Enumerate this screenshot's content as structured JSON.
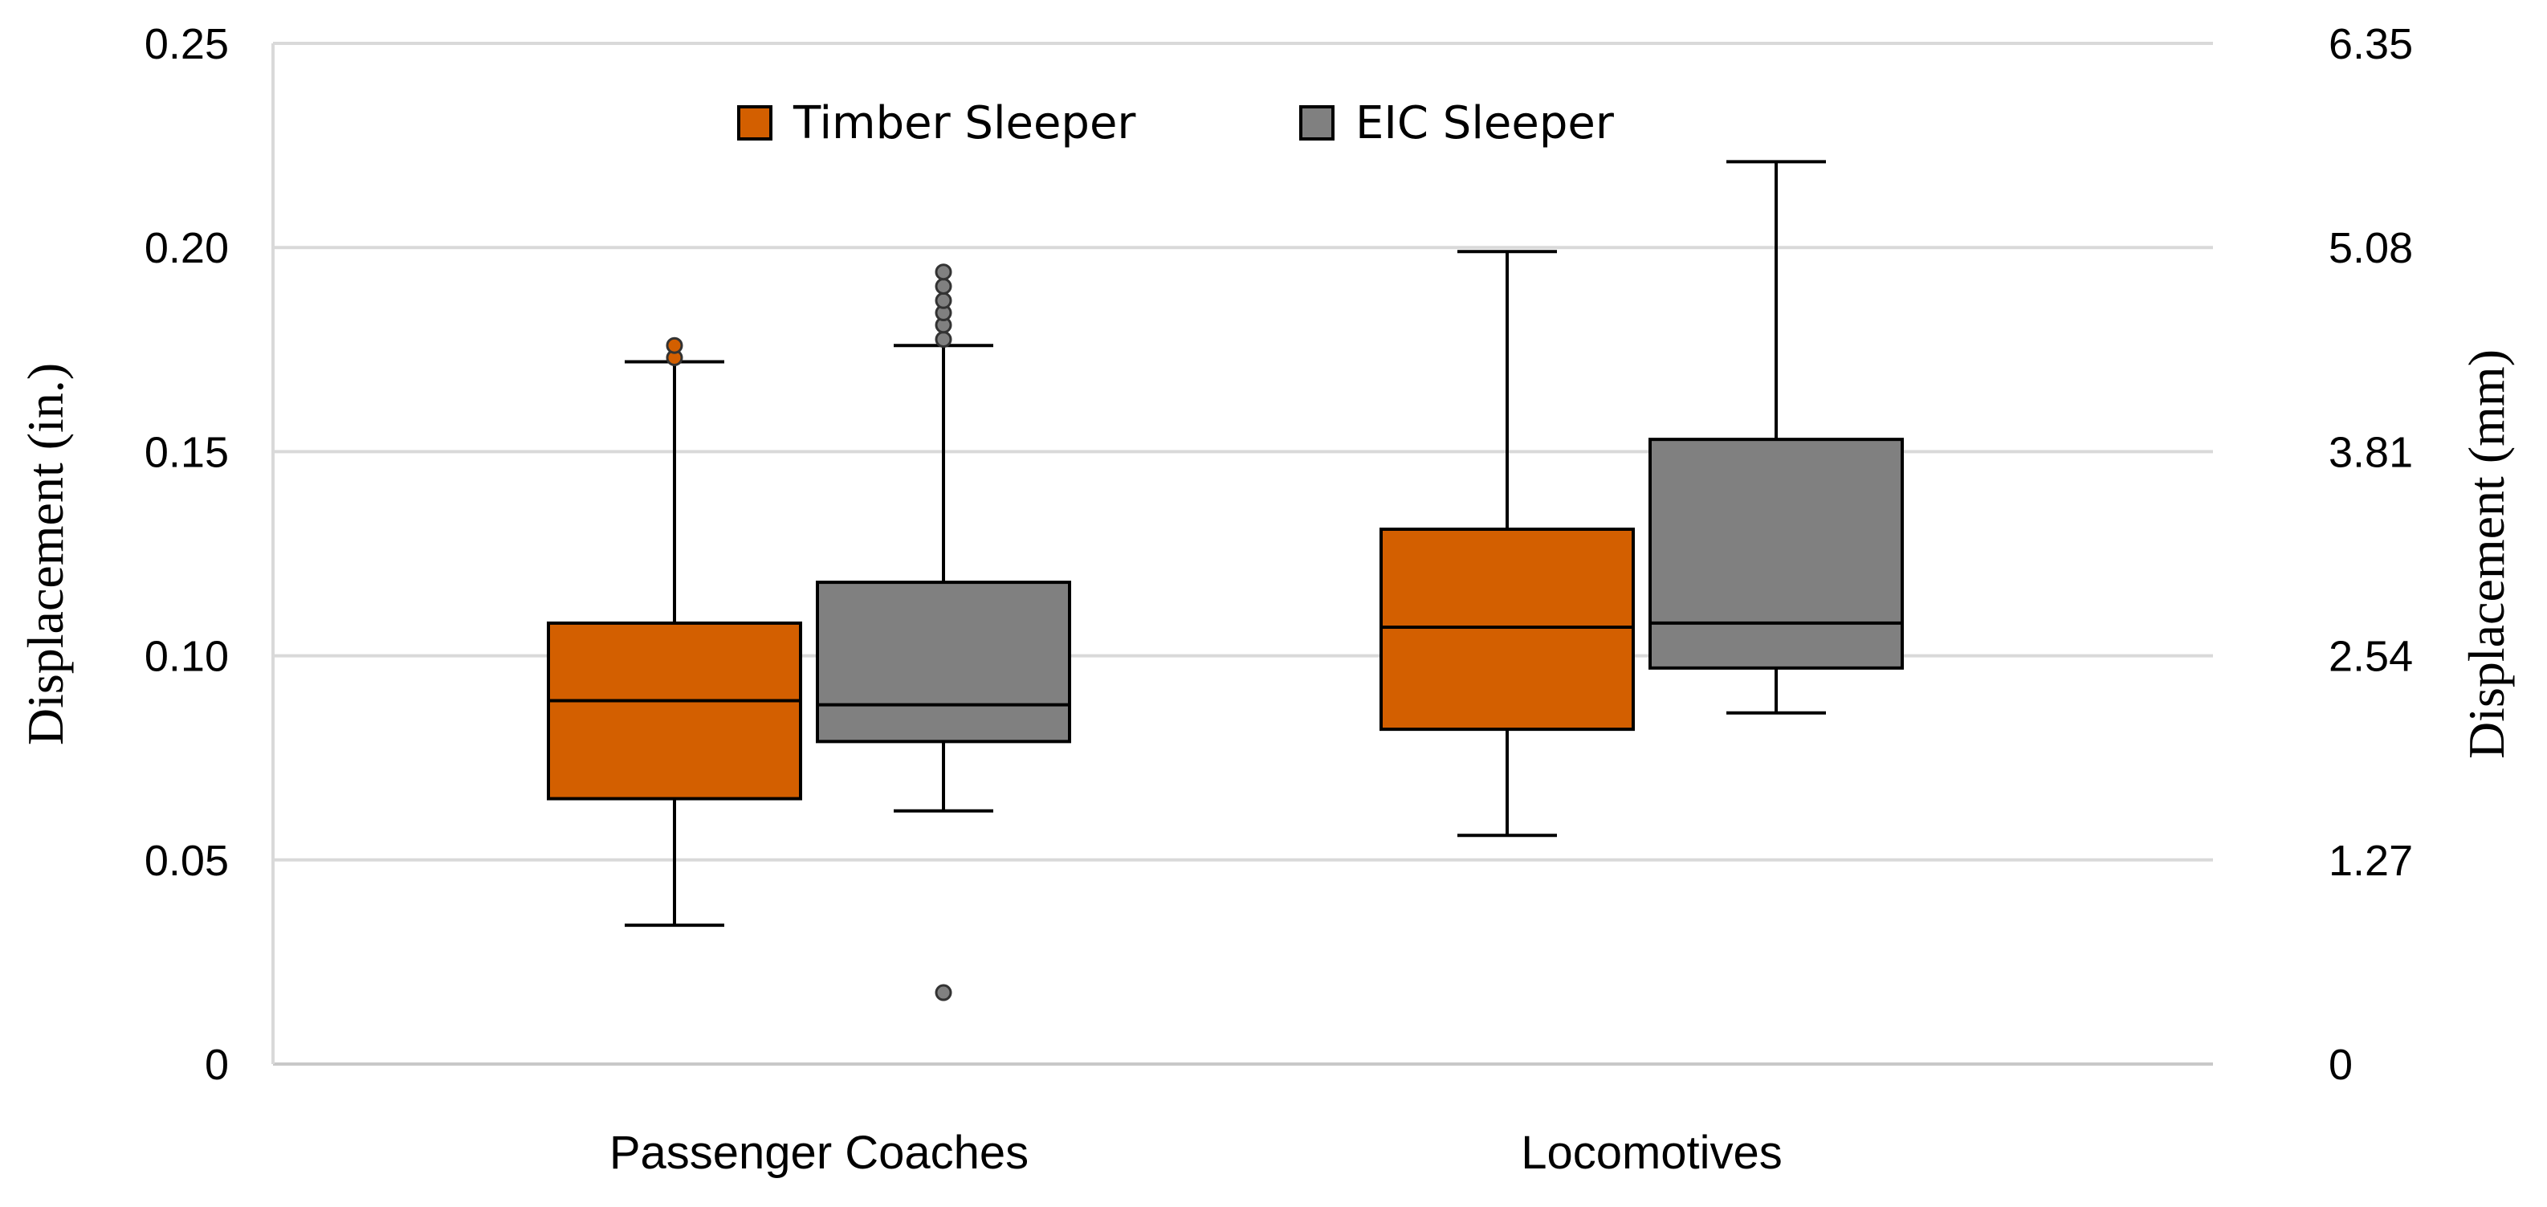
{
  "chart_data": {
    "type": "box",
    "left_axis": {
      "label": "Displacement (in.)",
      "range": [
        0,
        0.25
      ],
      "ticks": [
        0,
        0.05,
        0.1,
        0.15,
        0.2,
        0.25
      ],
      "tick_labels": [
        "0",
        "0.05",
        "0.10",
        "0.15",
        "0.20",
        "0.25"
      ]
    },
    "right_axis": {
      "label": "Displacement (mm)",
      "tick_labels": [
        "0",
        "1.27",
        "2.54",
        "3.81",
        "5.08",
        "6.35"
      ]
    },
    "gridlines": true,
    "legend_position": "top-center",
    "categories": [
      "Passenger Coaches",
      "Locomotives"
    ],
    "series": [
      {
        "name": "Timber Sleeper",
        "color": "#D35F00",
        "boxes": [
          {
            "whisker_low": 0.034,
            "q1": 0.065,
            "median": 0.089,
            "q3": 0.108,
            "whisker_high": 0.172,
            "outliers": [
              0.173,
              0.176
            ]
          },
          {
            "whisker_low": 0.056,
            "q1": 0.082,
            "median": 0.107,
            "q3": 0.131,
            "whisker_high": 0.199,
            "outliers": []
          }
        ]
      },
      {
        "name": "EIC Sleeper",
        "color": "#808080",
        "boxes": [
          {
            "whisker_low": 0.062,
            "q1": 0.079,
            "median": 0.088,
            "q3": 0.118,
            "whisker_high": 0.176,
            "outliers": [
              0.0175,
              0.1775,
              0.181,
              0.184,
              0.187,
              0.1905,
              0.194
            ]
          },
          {
            "whisker_low": 0.086,
            "q1": 0.097,
            "median": 0.108,
            "q3": 0.153,
            "whisker_high": 0.221,
            "outliers": []
          }
        ]
      }
    ]
  }
}
